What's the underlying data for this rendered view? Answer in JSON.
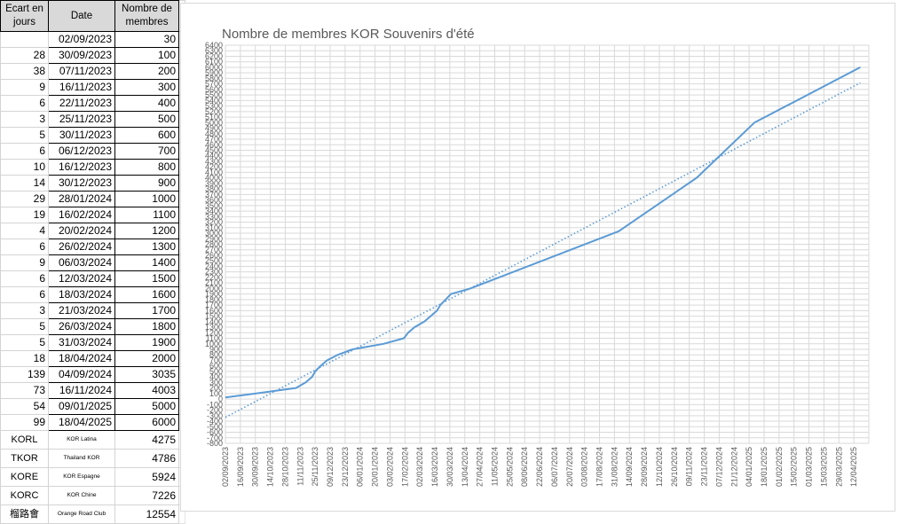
{
  "sheet": {
    "headers": [
      "Ecart en jours",
      "Date",
      "Nombre de membres"
    ],
    "rows": [
      [
        "",
        "02/09/2023",
        "30"
      ],
      [
        "28",
        "30/09/2023",
        "100"
      ],
      [
        "38",
        "07/11/2023",
        "200"
      ],
      [
        "9",
        "16/11/2023",
        "300"
      ],
      [
        "6",
        "22/11/2023",
        "400"
      ],
      [
        "3",
        "25/11/2023",
        "500"
      ],
      [
        "5",
        "30/11/2023",
        "600"
      ],
      [
        "6",
        "06/12/2023",
        "700"
      ],
      [
        "10",
        "16/12/2023",
        "800"
      ],
      [
        "14",
        "30/12/2023",
        "900"
      ],
      [
        "29",
        "28/01/2024",
        "1000"
      ],
      [
        "19",
        "16/02/2024",
        "1100"
      ],
      [
        "4",
        "20/02/2024",
        "1200"
      ],
      [
        "6",
        "26/02/2024",
        "1300"
      ],
      [
        "9",
        "06/03/2024",
        "1400"
      ],
      [
        "6",
        "12/03/2024",
        "1500"
      ],
      [
        "6",
        "18/03/2024",
        "1600"
      ],
      [
        "3",
        "21/03/2024",
        "1700"
      ],
      [
        "5",
        "26/03/2024",
        "1800"
      ],
      [
        "5",
        "31/03/2024",
        "1900"
      ],
      [
        "18",
        "18/04/2024",
        "2000"
      ],
      [
        "139",
        "04/09/2024",
        "3035"
      ],
      [
        "73",
        "16/11/2024",
        "4003"
      ],
      [
        "54",
        "09/01/2025",
        "5000"
      ],
      [
        "99",
        "18/04/2025",
        "6000"
      ]
    ],
    "clubs": [
      [
        "KORL",
        "KOR Latina",
        "4275"
      ],
      [
        "TKOR",
        "Thailand KOR",
        "4786"
      ],
      [
        "KORE",
        "KOR Espagne",
        "5924"
      ],
      [
        "KORC",
        "KOR Chine",
        "7226"
      ],
      [
        "榴路會",
        "Orange Road Club",
        "12554"
      ]
    ]
  },
  "chart_data": {
    "type": "line",
    "title": "Nombre de membres KOR Souvenirs d'été",
    "xlabel": "",
    "ylabel": "",
    "ylim": [
      -800,
      6400
    ],
    "ytick_step": 100,
    "x_ticks": [
      "02/09/2023",
      "16/09/2023",
      "30/09/2023",
      "14/10/2023",
      "28/10/2023",
      "11/11/2023",
      "25/11/2023",
      "09/12/2023",
      "23/12/2023",
      "06/01/2024",
      "20/01/2024",
      "03/02/2024",
      "17/02/2024",
      "02/03/2024",
      "16/03/2024",
      "30/03/2024",
      "13/04/2024",
      "27/04/2024",
      "11/05/2024",
      "25/05/2024",
      "08/06/2024",
      "22/06/2024",
      "06/07/2024",
      "20/07/2024",
      "03/08/2024",
      "17/08/2024",
      "31/08/2024",
      "14/09/2024",
      "28/09/2024",
      "12/10/2024",
      "26/10/2024",
      "09/11/2024",
      "23/11/2024",
      "07/12/2024",
      "21/12/2024",
      "04/01/2025",
      "18/01/2025",
      "01/02/2025",
      "15/02/2025",
      "01/03/2025",
      "15/03/2025",
      "29/03/2025",
      "12/04/2025"
    ],
    "grid": true,
    "series": [
      {
        "kind": "data",
        "x": [
          "02/09/2023",
          "30/09/2023",
          "07/11/2023",
          "16/11/2023",
          "22/11/2023",
          "25/11/2023",
          "30/11/2023",
          "06/12/2023",
          "16/12/2023",
          "30/12/2023",
          "28/01/2024",
          "16/02/2024",
          "20/02/2024",
          "26/02/2024",
          "06/03/2024",
          "12/03/2024",
          "18/03/2024",
          "21/03/2024",
          "26/03/2024",
          "31/03/2024",
          "18/04/2024",
          "04/09/2024",
          "16/11/2024",
          "09/01/2025",
          "18/04/2025"
        ],
        "y": [
          30,
          100,
          200,
          300,
          400,
          500,
          600,
          700,
          800,
          900,
          1000,
          1100,
          1200,
          1300,
          1400,
          1500,
          1600,
          1700,
          1800,
          1900,
          2000,
          3035,
          4003,
          5000,
          6000
        ],
        "color": "#5b9bd5",
        "style": "solid"
      },
      {
        "kind": "linear-trend",
        "x": [
          "02/09/2023",
          "18/04/2025"
        ],
        "y": [
          -330,
          5720
        ],
        "color": "#5b9bd5",
        "style": "dotted"
      }
    ]
  }
}
